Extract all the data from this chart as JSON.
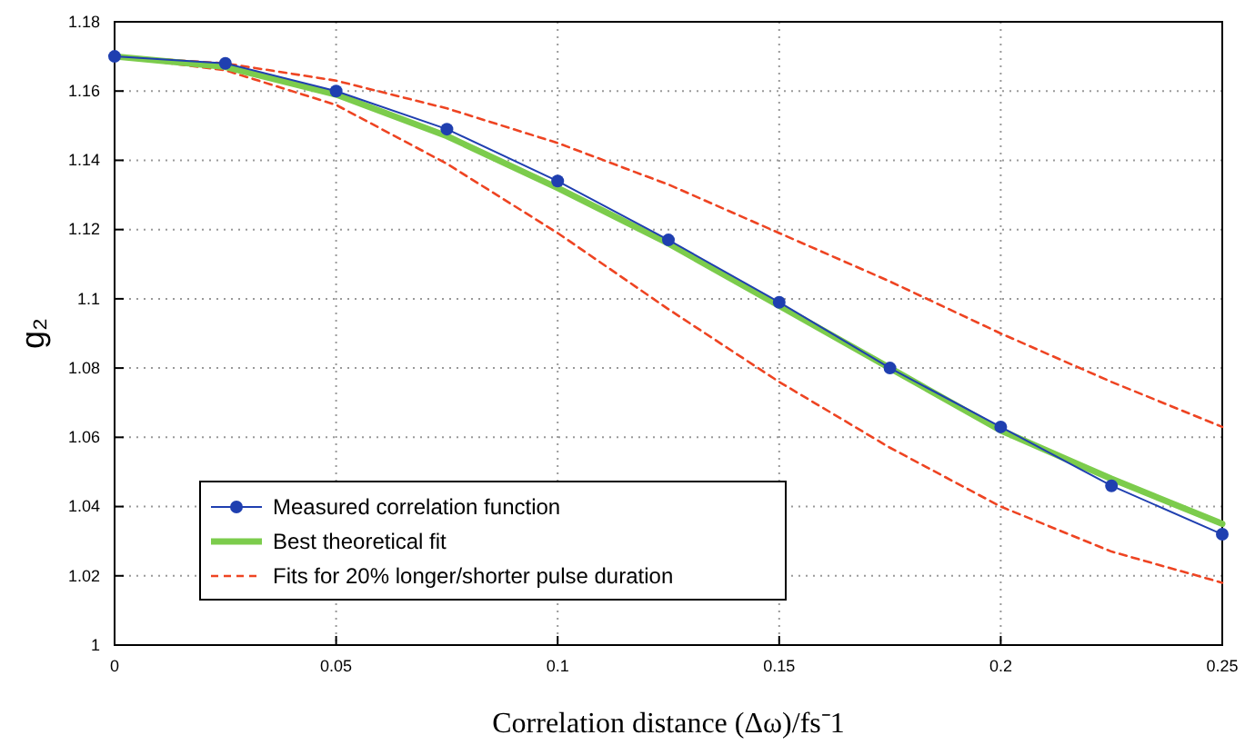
{
  "chart_data": {
    "type": "line",
    "xlabel": "Correlation distance (Δω)/fs⁻1",
    "ylabel": "g₂",
    "x": [
      0,
      0.025,
      0.05,
      0.075,
      0.1,
      0.125,
      0.15,
      0.175,
      0.2,
      0.225,
      0.25
    ],
    "xlim": [
      0,
      0.25
    ],
    "xticks": [
      0,
      0.05,
      0.1,
      0.15,
      0.2,
      0.25
    ],
    "ylim": [
      1,
      1.18
    ],
    "yticks": [
      1,
      1.02,
      1.04,
      1.06,
      1.08,
      1.1,
      1.12,
      1.14,
      1.16,
      1.18
    ],
    "grid": true,
    "legend": "bottom left",
    "series": [
      {
        "name": "Measured correlation function",
        "color": "#1f3fb0",
        "marker": "circle",
        "line_style": "solid",
        "values": [
          1.17,
          1.168,
          1.16,
          1.149,
          1.134,
          1.117,
          1.099,
          1.08,
          1.063,
          1.046,
          1.032
        ]
      },
      {
        "name": "Best theoretical fit",
        "color": "#7ccc4c",
        "marker": "none",
        "line_style": "solid",
        "values": [
          1.17,
          1.167,
          1.159,
          1.147,
          1.132,
          1.116,
          1.098,
          1.08,
          1.062,
          1.048,
          1.035
        ]
      },
      {
        "name": "Fits for 20% longer/shorter pulse duration",
        "color": "#ee4422",
        "marker": "none",
        "line_style": "dashed",
        "values": [
          1.17,
          1.168,
          1.163,
          1.155,
          1.145,
          1.133,
          1.119,
          1.105,
          1.09,
          1.076,
          1.063
        ]
      },
      {
        "color": "#ee4422",
        "marker": "none",
        "line_style": "dashed",
        "values": [
          1.17,
          1.166,
          1.156,
          1.139,
          1.119,
          1.097,
          1.076,
          1.057,
          1.04,
          1.027,
          1.018
        ]
      }
    ]
  }
}
